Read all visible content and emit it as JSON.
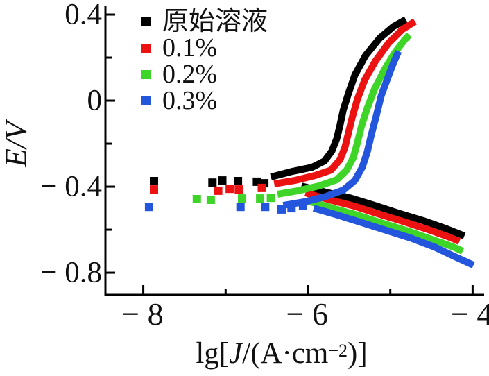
{
  "chart_data": {
    "type": "line",
    "title": "",
    "xlabel": "lg[J/(A·cm−2)]",
    "xlabel_parts": {
      "prefix": "lg[",
      "symbol": "J",
      "mid": "/(A·cm",
      "exponent": "−2",
      "suffix": ")]"
    },
    "ylabel": "E/V",
    "xlim": [
      -8.46,
      -3.86
    ],
    "ylim": [
      -0.903,
      0.442
    ],
    "x_major_ticks": [
      -8,
      -6,
      -4
    ],
    "x_minor_ticks": [
      -7,
      -5
    ],
    "y_major_ticks": [
      0.4,
      0,
      -0.4,
      -0.8
    ],
    "y_minor_ticks": [
      0.2,
      -0.2,
      -0.6
    ],
    "x_tick_labels": [
      "− 8",
      "− 6",
      "− 4"
    ],
    "y_tick_labels": [
      "0.4",
      "0",
      "− 0.4",
      "− 0.8"
    ],
    "axis_color": "#000000",
    "legend_position": "upper-left",
    "grid": false,
    "series": [
      {
        "name": "原始溶液",
        "color": "#000000",
        "anodic": [
          [
            -6.45,
            -0.355
          ],
          [
            -6.2,
            -0.33
          ],
          [
            -5.95,
            -0.31
          ],
          [
            -5.8,
            -0.281
          ],
          [
            -5.71,
            -0.235
          ],
          [
            -5.65,
            -0.177
          ],
          [
            -5.61,
            -0.113
          ],
          [
            -5.57,
            -0.042
          ],
          [
            -5.51,
            0.032
          ],
          [
            -5.43,
            0.119
          ],
          [
            -5.3,
            0.21
          ],
          [
            -5.13,
            0.29
          ],
          [
            -4.96,
            0.345
          ],
          [
            -4.81,
            0.377
          ]
        ],
        "cathodic": [
          [
            -6.08,
            -0.397
          ],
          [
            -5.78,
            -0.426
          ],
          [
            -5.49,
            -0.452
          ],
          [
            -5.19,
            -0.487
          ],
          [
            -4.9,
            -0.523
          ],
          [
            -4.6,
            -0.558
          ],
          [
            -4.31,
            -0.597
          ],
          [
            -4.1,
            -0.629
          ]
        ],
        "scatter": [
          [
            -7.87,
            -0.374
          ],
          [
            -7.16,
            -0.381
          ],
          [
            -7.04,
            -0.371
          ],
          [
            -6.85,
            -0.374
          ],
          [
            -6.62,
            -0.377
          ],
          [
            -6.53,
            -0.384
          ]
        ]
      },
      {
        "name": "0.1%",
        "color": "#ed1212",
        "anodic": [
          [
            -6.41,
            -0.387
          ],
          [
            -6.16,
            -0.371
          ],
          [
            -5.91,
            -0.348
          ],
          [
            -5.72,
            -0.323
          ],
          [
            -5.61,
            -0.274
          ],
          [
            -5.55,
            -0.216
          ],
          [
            -5.51,
            -0.152
          ],
          [
            -5.46,
            -0.074
          ],
          [
            -5.4,
            0.006
          ],
          [
            -5.31,
            0.097
          ],
          [
            -5.18,
            0.184
          ],
          [
            -5.02,
            0.268
          ],
          [
            -4.85,
            0.332
          ],
          [
            -4.7,
            0.368
          ]
        ],
        "cathodic": [
          [
            -6.03,
            -0.429
          ],
          [
            -5.74,
            -0.461
          ],
          [
            -5.44,
            -0.49
          ],
          [
            -5.15,
            -0.526
          ],
          [
            -4.85,
            -0.561
          ],
          [
            -4.56,
            -0.597
          ],
          [
            -4.28,
            -0.635
          ],
          [
            -4.16,
            -0.655
          ]
        ],
        "scatter": [
          [
            -7.87,
            -0.413
          ],
          [
            -7.09,
            -0.419
          ],
          [
            -6.95,
            -0.41
          ],
          [
            -6.84,
            -0.413
          ],
          [
            -6.56,
            -0.406
          ]
        ]
      },
      {
        "name": "0.2%",
        "color": "#3fd428",
        "anodic": [
          [
            -6.37,
            -0.435
          ],
          [
            -6.12,
            -0.419
          ],
          [
            -5.87,
            -0.397
          ],
          [
            -5.65,
            -0.368
          ],
          [
            -5.53,
            -0.323
          ],
          [
            -5.45,
            -0.265
          ],
          [
            -5.4,
            -0.197
          ],
          [
            -5.35,
            -0.119
          ],
          [
            -5.28,
            -0.035
          ],
          [
            -5.19,
            0.055
          ],
          [
            -5.07,
            0.145
          ],
          [
            -4.94,
            0.226
          ],
          [
            -4.83,
            0.281
          ],
          [
            -4.77,
            0.306
          ]
        ],
        "cathodic": [
          [
            -5.99,
            -0.468
          ],
          [
            -5.7,
            -0.5
          ],
          [
            -5.4,
            -0.532
          ],
          [
            -5.11,
            -0.568
          ],
          [
            -4.81,
            -0.603
          ],
          [
            -4.52,
            -0.642
          ],
          [
            -4.23,
            -0.681
          ],
          [
            -4.12,
            -0.7
          ]
        ],
        "scatter": [
          [
            -7.35,
            -0.458
          ],
          [
            -7.18,
            -0.461
          ],
          [
            -6.8,
            -0.455
          ],
          [
            -6.58,
            -0.455
          ],
          [
            -6.45,
            -0.452
          ]
        ]
      },
      {
        "name": "0.3%",
        "color": "#2356dd",
        "anodic": [
          [
            -6.3,
            -0.487
          ],
          [
            -6.05,
            -0.471
          ],
          [
            -5.8,
            -0.448
          ],
          [
            -5.57,
            -0.416
          ],
          [
            -5.43,
            -0.371
          ],
          [
            -5.34,
            -0.31
          ],
          [
            -5.28,
            -0.239
          ],
          [
            -5.23,
            -0.158
          ],
          [
            -5.17,
            -0.071
          ],
          [
            -5.11,
            0.023
          ],
          [
            -5.03,
            0.106
          ],
          [
            -4.96,
            0.177
          ],
          [
            -4.9,
            0.229
          ]
        ],
        "cathodic": [
          [
            -5.93,
            -0.5
          ],
          [
            -5.64,
            -0.532
          ],
          [
            -5.34,
            -0.568
          ],
          [
            -5.05,
            -0.603
          ],
          [
            -4.75,
            -0.639
          ],
          [
            -4.46,
            -0.681
          ],
          [
            -4.23,
            -0.723
          ],
          [
            -3.99,
            -0.765
          ]
        ],
        "scatter": [
          [
            -7.93,
            -0.494
          ],
          [
            -6.82,
            -0.494
          ],
          [
            -6.52,
            -0.494
          ],
          [
            -6.32,
            -0.506
          ],
          [
            -6.2,
            -0.5
          ],
          [
            -6.06,
            -0.49
          ]
        ]
      }
    ]
  }
}
